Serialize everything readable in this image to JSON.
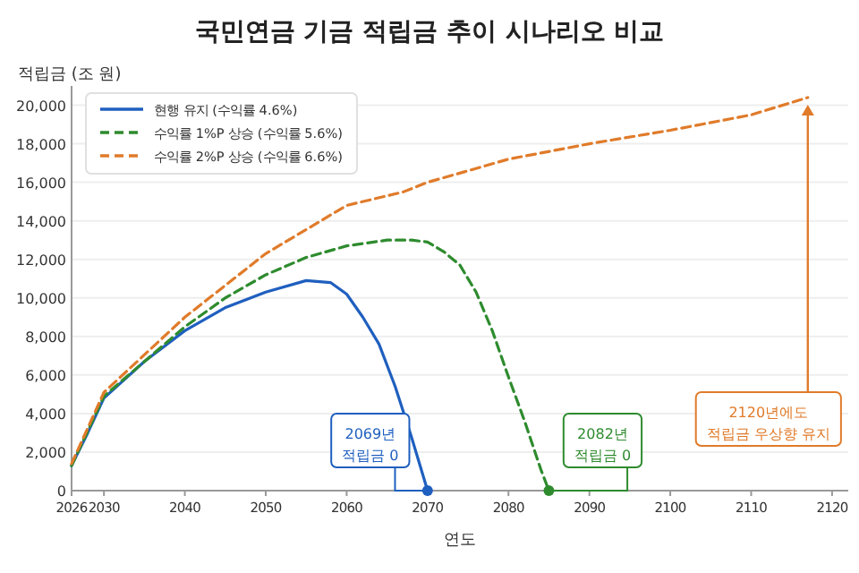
{
  "chart_data": {
    "type": "line",
    "title": "국민연금 기금 적립금 추이 시나리오 비교",
    "xlabel": "연도",
    "ylabel": "적립금 (조 원)",
    "xlim": [
      2026,
      2122
    ],
    "ylim": [
      0,
      21000
    ],
    "xticks": [
      2026,
      2030,
      2040,
      2050,
      2060,
      2070,
      2080,
      2090,
      2100,
      2110,
      2120
    ],
    "yticks": [
      0,
      {
        "value": 2000,
        "label": "2,000"
      },
      {
        "value": 4000,
        "label": "4,000"
      },
      {
        "value": 6000,
        "label": "6,000"
      },
      {
        "value": 8000,
        "label": "8,000"
      },
      {
        "value": 10000,
        "label": "10,000"
      },
      {
        "value": 12000,
        "label": "12,000"
      },
      {
        "value": 14000,
        "label": "14,000"
      },
      {
        "value": 16000,
        "label": "16,000"
      },
      {
        "value": 18000,
        "label": "18,000"
      },
      {
        "value": 20000,
        "label": "20,000"
      }
    ],
    "grid": "y",
    "legend": "top left",
    "series": [
      {
        "name": "현행 유지 (수익률 4.6%)",
        "color": "#1f5fbf",
        "line_style": "solid",
        "x": [
          2026,
          2028,
          2030,
          2035,
          2040,
          2045,
          2050,
          2055,
          2058,
          2060,
          2062,
          2064,
          2066,
          2068,
          2070
        ],
        "values": [
          1300,
          3000,
          4800,
          6700,
          8300,
          9500,
          10300,
          10900,
          10800,
          10200,
          9000,
          7600,
          5400,
          2800,
          0
        ]
      },
      {
        "name": "수익률 1%P 상승 (수익률 5.6%)",
        "color": "#2e8b2e",
        "line_style": "dashed",
        "x": [
          2026,
          2030,
          2040,
          2045,
          2050,
          2055,
          2060,
          2065,
          2068,
          2070,
          2072,
          2074,
          2076,
          2078,
          2080,
          2082,
          2084,
          2085
        ],
        "values": [
          1300,
          4900,
          8500,
          10000,
          11200,
          12100,
          12700,
          13000,
          13000,
          12900,
          12400,
          11700,
          10300,
          8300,
          5900,
          3600,
          1100,
          0
        ]
      },
      {
        "name": "수익률 2%P 상승 (수익률 6.6%)",
        "color": "#e07b2a",
        "line_style": "dashed",
        "x": [
          2026,
          2030,
          2040,
          2050,
          2060,
          2067,
          2070,
          2080,
          2090,
          2100,
          2110,
          2117
        ],
        "values": [
          1400,
          5100,
          9000,
          12300,
          14800,
          15500,
          16000,
          17200,
          18000,
          18700,
          19500,
          20400
        ]
      }
    ],
    "annotations": [
      {
        "text": "2069년\n적립금 0",
        "x": 2070,
        "y": 0
      },
      {
        "text": "2082년\n적립금 0",
        "x": 2085,
        "y": 0
      },
      {
        "text": "2120년에도\n적립금 우상향 유지",
        "x": 2117,
        "y": 20400
      }
    ]
  }
}
